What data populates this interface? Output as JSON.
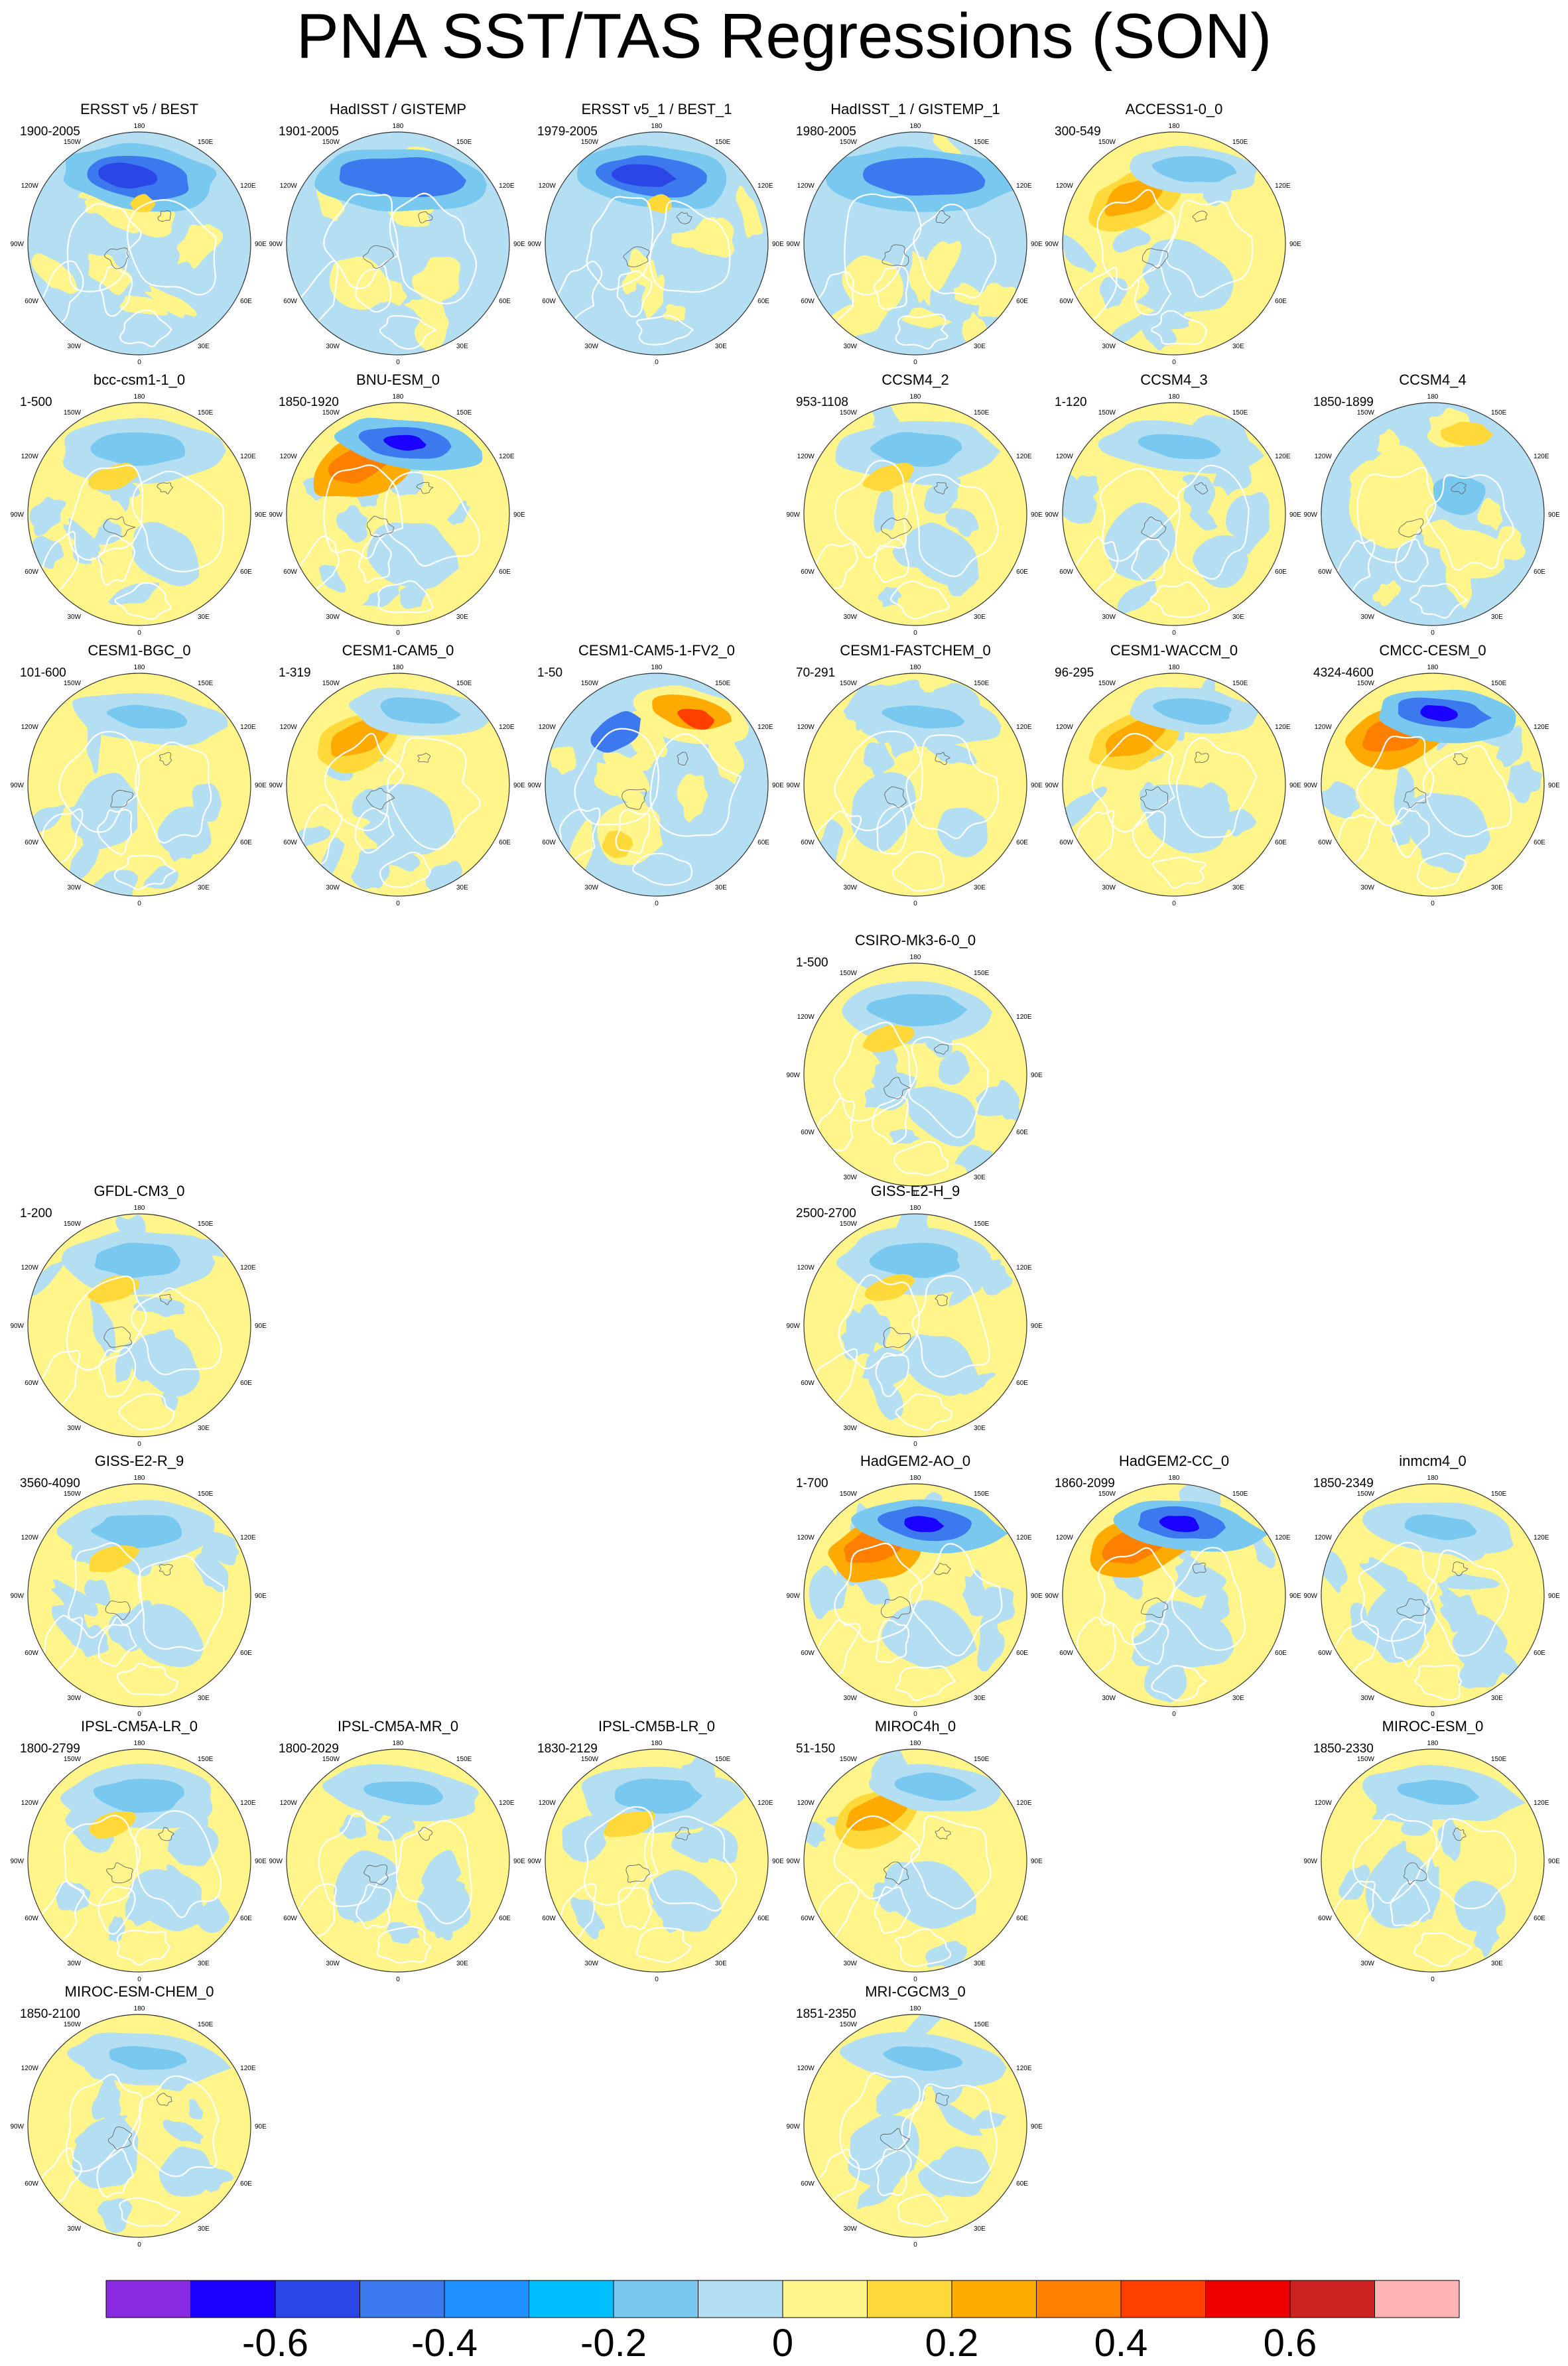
{
  "title": "PNA SST/TAS Regressions (SON)",
  "longitude_labels": {
    "top": "180",
    "bottom": "0",
    "upper_left": "150W",
    "upper_right": "150E",
    "left_upper": "120W",
    "right_upper": "120E",
    "left": "90W",
    "right": "90E",
    "left_lower": "60W",
    "right_lower": "60E",
    "lower_left": "30W",
    "lower_right": "30E"
  },
  "panels": [
    {
      "name": "ERSST v5 / BEST",
      "years": "1900-2005",
      "row": 0,
      "col": 0,
      "pattern": "blue_strong"
    },
    {
      "name": "HadISST / GISTEMP",
      "years": "1901-2005",
      "row": 0,
      "col": 1,
      "pattern": "blue_wide"
    },
    {
      "name": "ERSST v5_1 / BEST_1",
      "years": "1979-2005",
      "row": 0,
      "col": 2,
      "pattern": "blue_strong"
    },
    {
      "name": "HadISST_1 / GISTEMP_1",
      "years": "1980-2005",
      "row": 0,
      "col": 3,
      "pattern": "blue_wide"
    },
    {
      "name": "ACCESS1-0_0",
      "years": "300-549",
      "row": 0,
      "col": 4,
      "pattern": "dipole_orange"
    },
    {
      "name": "bcc-csm1-1_0",
      "years": "1-500",
      "row": 1,
      "col": 0,
      "pattern": "dipole"
    },
    {
      "name": "BNU-ESM_0",
      "years": "1850-1920",
      "row": 1,
      "col": 1,
      "pattern": "dipole_strong"
    },
    {
      "name": "CCSM4_2",
      "years": "953-1108",
      "row": 1,
      "col": 3,
      "pattern": "dipole"
    },
    {
      "name": "CCSM4_3",
      "years": "1-120",
      "row": 1,
      "col": 4,
      "pattern": "weak_blue"
    },
    {
      "name": "CCSM4_4",
      "years": "1850-1899",
      "row": 1,
      "col": 5,
      "pattern": "mixed"
    },
    {
      "name": "CESM1-BGC_0",
      "years": "101-600",
      "row": 2,
      "col": 0,
      "pattern": "weak_blue"
    },
    {
      "name": "CESM1-CAM5_0",
      "years": "1-319",
      "row": 2,
      "col": 1,
      "pattern": "dipole_orange"
    },
    {
      "name": "CESM1-CAM5-1-FV2_0",
      "years": "1-50",
      "row": 2,
      "col": 2,
      "pattern": "red_blue"
    },
    {
      "name": "CESM1-FASTCHEM_0",
      "years": "70-291",
      "row": 2,
      "col": 3,
      "pattern": "weak_blue"
    },
    {
      "name": "CESM1-WACCM_0",
      "years": "96-295",
      "row": 2,
      "col": 4,
      "pattern": "dipole_orange"
    },
    {
      "name": "CMCC-CESM_0",
      "years": "4324-4600",
      "row": 2,
      "col": 5,
      "pattern": "dipole_strong"
    },
    {
      "name": "CSIRO-Mk3-6-0_0",
      "years": "1-500",
      "row": 3,
      "col": 3,
      "pattern": "dipole"
    },
    {
      "name": "GFDL-CM3_0",
      "years": "1-200",
      "row": 4,
      "col": 0,
      "pattern": "dipole"
    },
    {
      "name": "GISS-E2-H_9",
      "years": "2500-2700",
      "row": 4,
      "col": 3,
      "pattern": "dipole"
    },
    {
      "name": "GISS-E2-R_9",
      "years": "3560-4090",
      "row": 5,
      "col": 0,
      "pattern": "dipole"
    },
    {
      "name": "HadGEM2-AO_0",
      "years": "1-700",
      "row": 5,
      "col": 3,
      "pattern": "dipole_strong"
    },
    {
      "name": "HadGEM2-CC_0",
      "years": "1860-2099",
      "row": 5,
      "col": 4,
      "pattern": "dipole_strong"
    },
    {
      "name": "inmcm4_0",
      "years": "1850-2349",
      "row": 5,
      "col": 5,
      "pattern": "weak_blue"
    },
    {
      "name": "IPSL-CM5A-LR_0",
      "years": "1800-2799",
      "row": 6,
      "col": 0,
      "pattern": "dipole"
    },
    {
      "name": "IPSL-CM5A-MR_0",
      "years": "1800-2029",
      "row": 6,
      "col": 1,
      "pattern": "weak_blue"
    },
    {
      "name": "IPSL-CM5B-LR_0",
      "years": "1830-2129",
      "row": 6,
      "col": 2,
      "pattern": "dipole"
    },
    {
      "name": "MIROC4h_0",
      "years": "51-150",
      "row": 6,
      "col": 3,
      "pattern": "dipole_orange"
    },
    {
      "name": "MIROC-ESM_0",
      "years": "1850-2330",
      "row": 6,
      "col": 5,
      "pattern": "weak_blue"
    },
    {
      "name": "MIROC-ESM-CHEM_0",
      "years": "1850-2100",
      "row": 7,
      "col": 0,
      "pattern": "weak_blue"
    },
    {
      "name": "MRI-CGCM3_0",
      "years": "1851-2350",
      "row": 7,
      "col": 3,
      "pattern": "weak_blue"
    }
  ],
  "colorbar": {
    "colors": [
      "#8a2be2",
      "#1a00ff",
      "#2b46e6",
      "#3c78ee",
      "#1e90ff",
      "#00bfff",
      "#78c8f0",
      "#b4def2",
      "#fff58a",
      "#ffd93a",
      "#ffaa00",
      "#ff7f00",
      "#ff3f00",
      "#ee0000",
      "#cc2222",
      "#ffb4b4"
    ],
    "labels": [
      "-0.6",
      "-0.4",
      "-0.2",
      "0",
      "0.2",
      "0.4",
      "0.6"
    ],
    "label_values": [
      -0.6,
      -0.4,
      -0.2,
      0,
      0.2,
      0.4,
      0.6
    ],
    "min": -0.8,
    "max": 0.8
  },
  "colors": {
    "land_outline": "#ffffff",
    "pos_weak": "#fff58a",
    "neg_weak": "#b4def2"
  }
}
